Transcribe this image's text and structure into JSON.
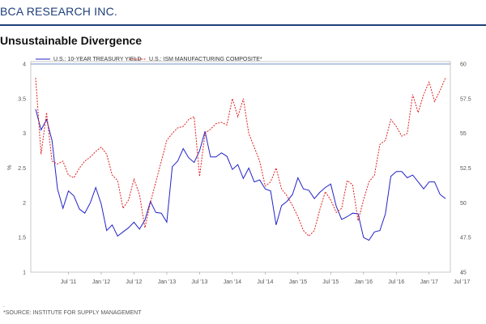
{
  "brand": "BCA RESEARCH INC.",
  "colors": {
    "brand": "#1f3f7a",
    "yield": "#2323c8",
    "ism": "#e02020"
  },
  "chart_data": {
    "type": "line",
    "title": "Unsustainable Divergence",
    "source": "*SOURCE: INSTITUTE FOR SUPPLY MANAGEMENT",
    "footnote_mark": ".",
    "y_left_label": "%",
    "y_right_label": "",
    "y_left_lim": [
      1,
      4
    ],
    "y_left_ticks": [
      "1",
      "1.5",
      "2",
      "2.5",
      "3",
      "3.5",
      "4"
    ],
    "y_right_lim": [
      45,
      60
    ],
    "y_right_ticks": [
      "45",
      "47.5",
      "50",
      "52.5",
      "55",
      "57.5",
      "60"
    ],
    "x_ticks": [
      "Jul '11",
      "Jan '12",
      "Jul '12",
      "Jan '13",
      "Jul '13",
      "Jan '14",
      "Jul '14",
      "Jan '15",
      "Jul '15",
      "Jan '16",
      "Jul '16",
      "Jan '17",
      "Jul '17"
    ],
    "x_start": "Jan 2011",
    "x_end": "Oct 2017",
    "series": [
      {
        "name": "U.S.: 10-YEAR TREASURY YIELD",
        "axis": "left",
        "style": "solid",
        "values": [
          3.35,
          3.05,
          3.2,
          2.9,
          2.2,
          1.92,
          2.17,
          2.1,
          1.91,
          1.85,
          2.0,
          2.22,
          1.98,
          1.6,
          1.68,
          1.52,
          1.58,
          1.64,
          1.72,
          1.62,
          1.75,
          2.02,
          1.86,
          1.85,
          1.72,
          2.52,
          2.6,
          2.78,
          2.65,
          2.58,
          2.75,
          3.03,
          2.66,
          2.66,
          2.72,
          2.67,
          2.48,
          2.55,
          2.35,
          2.5,
          2.3,
          2.33,
          2.2,
          2.17,
          1.68,
          1.96,
          2.02,
          2.12,
          2.36,
          2.2,
          2.18,
          2.06,
          2.15,
          2.22,
          2.27,
          1.95,
          1.76,
          1.8,
          1.85,
          1.84,
          1.5,
          1.46,
          1.58,
          1.6,
          1.84,
          2.38,
          2.45,
          2.45,
          2.36,
          2.4,
          2.3,
          2.2,
          2.3,
          2.3,
          2.12,
          2.06
        ]
      },
      {
        "name": "U.S.: ISM MANUFACTURING COMPOSITE*",
        "axis": "right",
        "style": "dashed",
        "values": [
          59.0,
          53.5,
          56.5,
          53.0,
          52.8,
          53.0,
          52.0,
          51.8,
          52.5,
          53.0,
          53.3,
          53.7,
          54.0,
          53.5,
          52.0,
          51.6,
          49.6,
          50.2,
          51.7,
          50.6,
          48.2,
          50.0,
          51.5,
          53.0,
          54.5,
          55.0,
          55.4,
          55.5,
          56.0,
          56.2,
          51.9,
          55.0,
          55.3,
          55.7,
          55.8,
          55.6,
          57.5,
          56.2,
          57.5,
          55.0,
          54.0,
          53.0,
          51.2,
          51.5,
          52.5,
          51.0,
          50.5,
          49.8,
          49.0,
          48.0,
          47.6,
          48.0,
          49.5,
          50.8,
          50.2,
          49.3,
          49.6,
          51.6,
          51.3,
          48.7,
          50.2,
          51.5,
          52.0,
          54.2,
          54.5,
          56.0,
          55.5,
          54.8,
          55.0,
          57.8,
          56.5,
          57.8,
          58.7,
          57.3,
          58.1,
          59.0
        ]
      }
    ]
  }
}
